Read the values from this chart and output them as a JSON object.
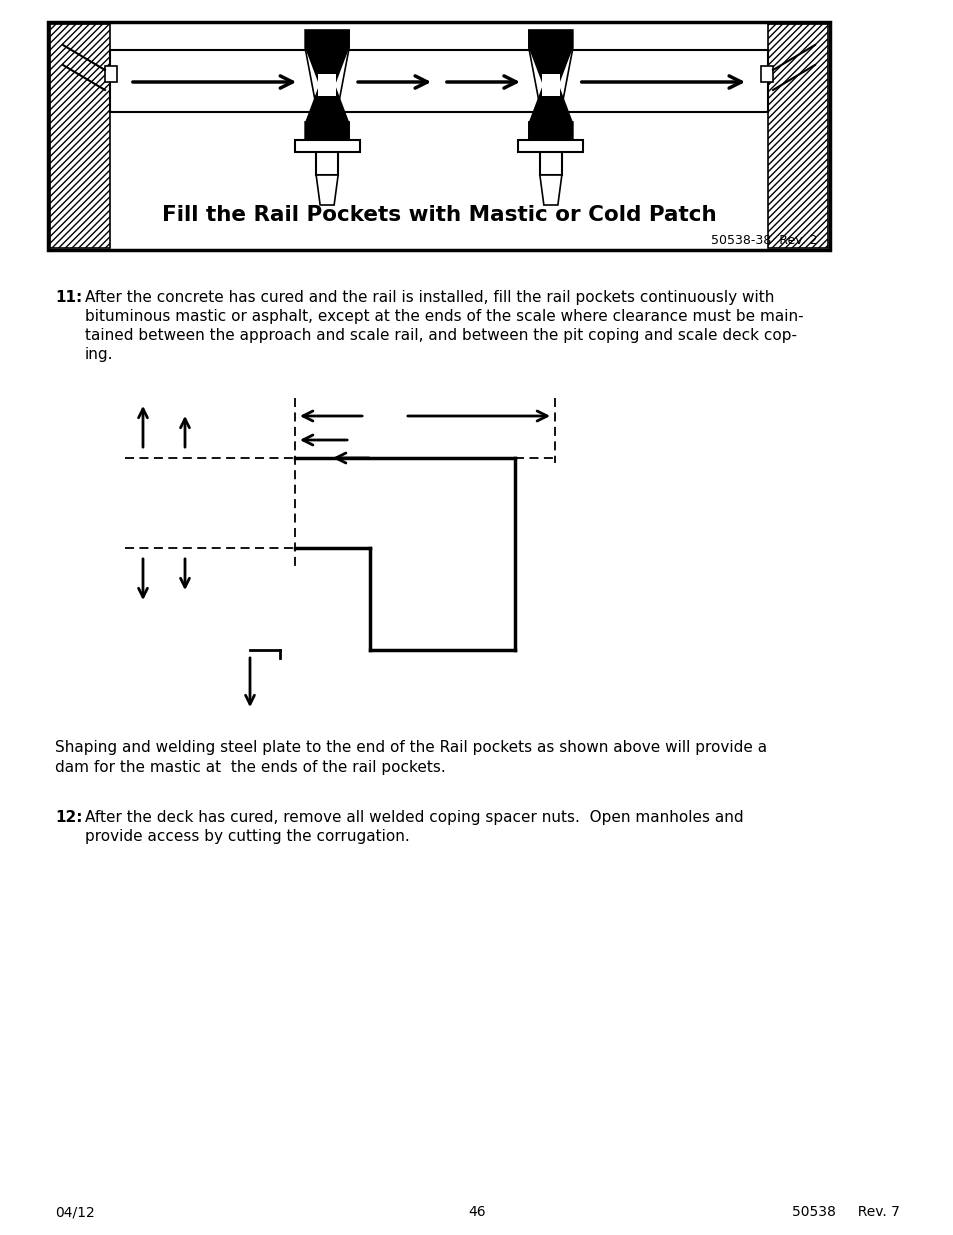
{
  "page_bg": "#ffffff",
  "text_color": "#000000",
  "para11_bold": "11:",
  "para_shaping_text_line1": "Shaping and welding steel plate to the end of the Rail pockets as shown above will provide a",
  "para_shaping_text_line2": "dam for the mastic at  the ends of the rail pockets.",
  "para12_bold": "12:",
  "para12_line1": "After the deck has cured, remove all welded coping spacer nuts.  Open manholes and",
  "para12_line2": "provide access by cutting the corrugation.",
  "footer_left": "04/12",
  "footer_center": "46",
  "footer_right": "50538     Rev. 7",
  "diagram_caption": "Fill the Rail Pockets with Mastic or Cold Patch",
  "diagram_ref": "50538-38  Rev. 2",
  "para11_lines": [
    "After the concrete has cured and the rail is installed, fill the rail pockets continuously with",
    "bituminous mastic or asphalt, except at the ends of the scale where clearance must be main-",
    "tained between the approach and scale rail, and between the pit coping and scale deck cop-",
    "ing."
  ]
}
